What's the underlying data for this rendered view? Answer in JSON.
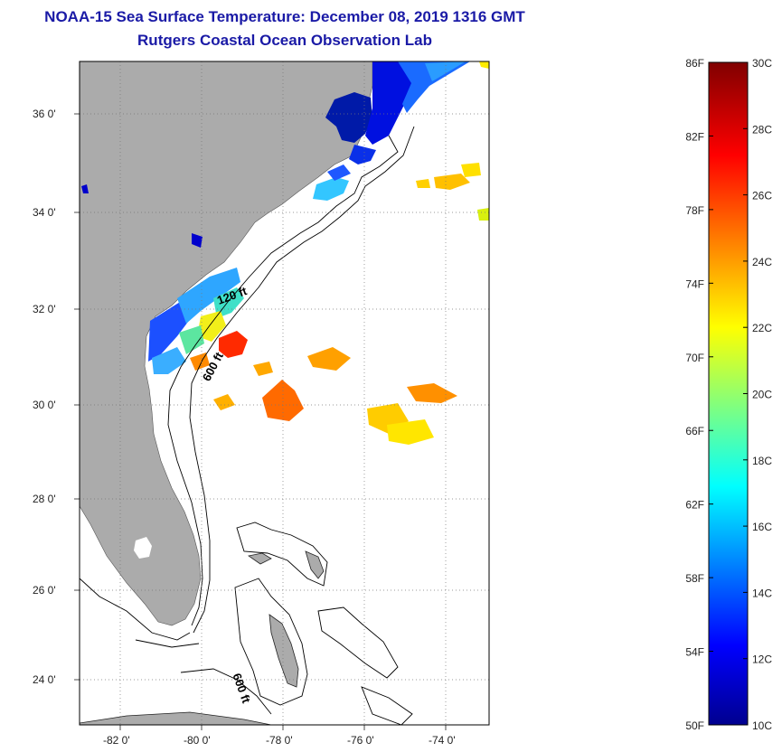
{
  "title": {
    "line1": "NOAA-15 Sea Surface Temperature:  December 08, 2019 1316 GMT",
    "line2": "Rutgers Coastal Ocean Observation Lab"
  },
  "map": {
    "lat_labels": [
      "36 0'",
      "34 0'",
      "32 0'",
      "30 0'",
      "28 0'",
      "26 0'",
      "24 0'"
    ],
    "lon_labels": [
      "-82 0'",
      "-80 0'",
      "-78 0'",
      "-76 0'",
      "-74 0'"
    ],
    "contour_labels": [
      "120 ft",
      "600 ft",
      "600 ft"
    ],
    "colors": {
      "land": "#ababab",
      "water": "#ffffff"
    }
  },
  "colorbar": {
    "f_labels": [
      "86F",
      "82F",
      "78F",
      "74F",
      "70F",
      "66F",
      "62F",
      "58F",
      "54F",
      "50F"
    ],
    "c_labels": [
      "30C",
      "28C",
      "26C",
      "24C",
      "22C",
      "20C",
      "18C",
      "16C",
      "14C",
      "12C",
      "10C"
    ],
    "range_c": [
      10,
      30
    ],
    "range_f": [
      50,
      86
    ]
  }
}
